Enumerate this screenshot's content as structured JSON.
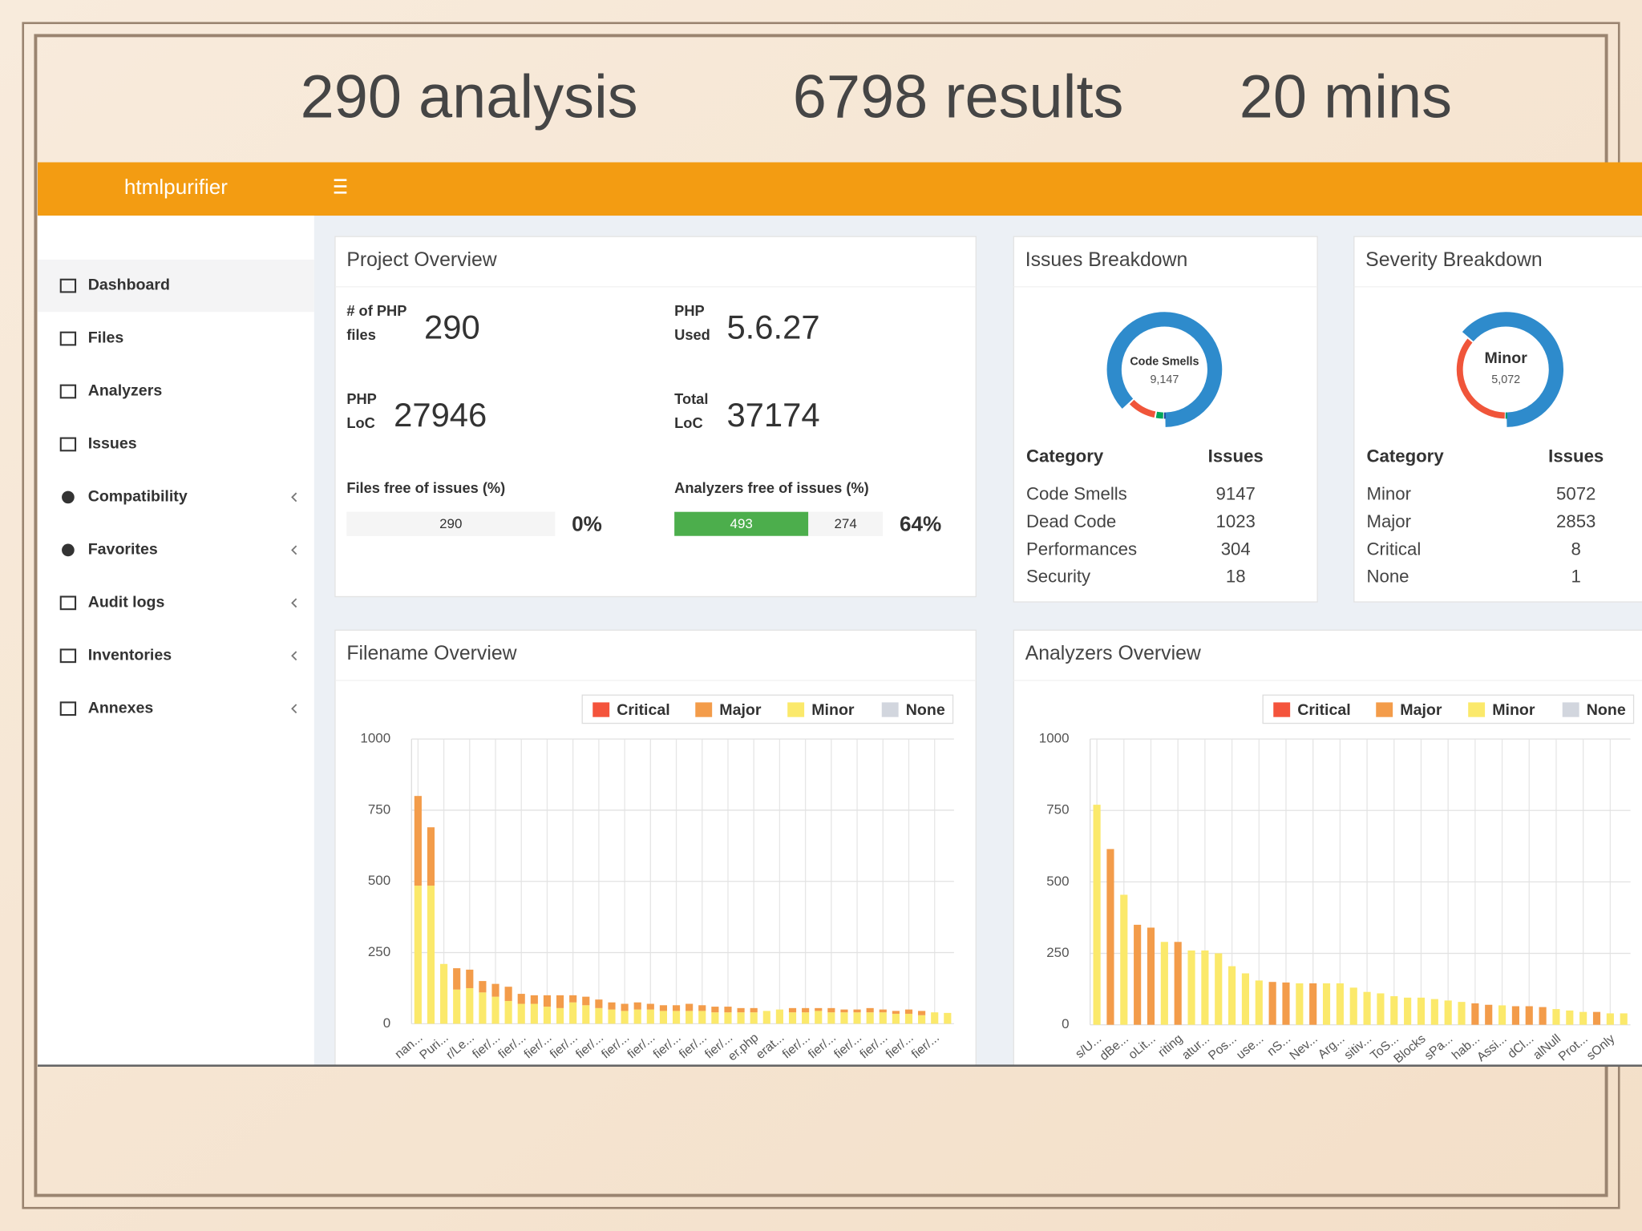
{
  "slide": {
    "stats": [
      "290 analysis",
      "6798 results",
      "20 mins"
    ]
  },
  "navbar": {
    "brand": "htmlpurifier"
  },
  "sidebar": {
    "items": [
      "Dashboard",
      "Files",
      "Analyzers",
      "Issues",
      "Compatibility",
      "Favorites",
      "Audit logs",
      "Inventories",
      "Annexes"
    ]
  },
  "project_overview": {
    "title": "Project Overview",
    "stats": [
      {
        "label": [
          "# of PHP",
          "files"
        ],
        "value": 290
      },
      {
        "label": [
          "PHP",
          "Used"
        ],
        "value": "5.6.27"
      },
      {
        "label": [
          "PHP",
          "LoC"
        ],
        "value": 27946
      },
      {
        "label": [
          "Total",
          "LoC"
        ],
        "value": 37174
      }
    ],
    "progress": [
      {
        "label": "Files free of issues (%)",
        "segments": [
          {
            "value": 290,
            "color": "#f5f5f5"
          }
        ],
        "percent": "0%"
      },
      {
        "label": "Analyzers free of issues (%)",
        "segments": [
          {
            "value": 493,
            "color": "#4cae4c"
          },
          {
            "value": 274,
            "color": "#f5f5f5"
          }
        ],
        "percent": "64%"
      }
    ]
  },
  "issues_breakdown": {
    "title": "Issues Breakdown",
    "headers": [
      "Category",
      "Issues"
    ],
    "rows": [
      [
        "Code Smells",
        9147
      ],
      [
        "Dead Code",
        1023
      ],
      [
        "Performances",
        304
      ],
      [
        "Security",
        18
      ]
    ],
    "colors": [
      "#2e8bcc",
      "#f0553a",
      "#00a65a",
      "#1f4fa0"
    ],
    "center_label": "Code Smells",
    "center_value": "9,147"
  },
  "severity_breakdown": {
    "title": "Severity Breakdown",
    "headers": [
      "Category",
      "Issues"
    ],
    "rows": [
      [
        "Minor",
        5072
      ],
      [
        "Major",
        2853
      ],
      [
        "Critical",
        8
      ],
      [
        "None",
        1
      ]
    ],
    "colors": [
      "#2e8bcc",
      "#f0553a",
      "#1f4fa0",
      "#00a65a"
    ],
    "center_label": "Minor",
    "center_value": "5,072"
  },
  "filename_overview": {
    "type": "bar",
    "stacked": true,
    "title": "Filename Overview",
    "categories": [
      "nan...",
      null,
      "Puri...",
      null,
      "r/Le...",
      null,
      "fier/...",
      null,
      "fier/...",
      null,
      "fier/...",
      null,
      "fier/...",
      null,
      "fier/...",
      null,
      "fier/...",
      null,
      "fier/...",
      null,
      "fier/...",
      null,
      "fier/...",
      null,
      "fier/...",
      null,
      "er.php",
      null,
      "erat...",
      null,
      "fier/...",
      null,
      "fier/...",
      null,
      "fier/...",
      null,
      "fier/...",
      null,
      "fier/...",
      null,
      "fier/...",
      null
    ],
    "series": [
      {
        "name": "Critical",
        "color": "#f4543c",
        "values": [
          0,
          0,
          0,
          0,
          0,
          0,
          0,
          0,
          0,
          0,
          0,
          0,
          0,
          0,
          0,
          0,
          0,
          0,
          0,
          0,
          0,
          0,
          0,
          0,
          0,
          0,
          0,
          0,
          0,
          0,
          0,
          0,
          0,
          0,
          0,
          0,
          0,
          0,
          0,
          0,
          0,
          0
        ]
      },
      {
        "name": "Major",
        "color": "#f39c4a",
        "values": [
          315,
          205,
          0,
          75,
          65,
          40,
          45,
          50,
          35,
          30,
          40,
          45,
          25,
          30,
          30,
          25,
          25,
          25,
          20,
          20,
          20,
          25,
          20,
          20,
          20,
          15,
          15,
          0,
          0,
          15,
          15,
          10,
          15,
          10,
          10,
          15,
          10,
          10,
          15,
          15,
          0,
          0
        ]
      },
      {
        "name": "Minor",
        "color": "#fbe96b",
        "values": [
          485,
          485,
          210,
          120,
          125,
          110,
          95,
          80,
          70,
          70,
          60,
          55,
          75,
          65,
          55,
          50,
          45,
          50,
          50,
          45,
          45,
          45,
          45,
          40,
          40,
          40,
          40,
          45,
          50,
          40,
          40,
          45,
          40,
          40,
          40,
          40,
          40,
          35,
          35,
          30,
          40,
          38
        ]
      },
      {
        "name": "None",
        "color": "#d2d6de",
        "values": [
          0,
          0,
          0,
          0,
          0,
          0,
          0,
          0,
          0,
          0,
          0,
          0,
          0,
          0,
          0,
          0,
          0,
          0,
          0,
          0,
          0,
          0,
          0,
          0,
          0,
          0,
          0,
          0,
          0,
          0,
          0,
          0,
          0,
          0,
          0,
          0,
          0,
          0,
          0,
          0,
          0,
          0
        ]
      }
    ],
    "ylim": [
      0,
      1000
    ],
    "yticks": [
      0,
      250,
      500,
      750,
      1000
    ],
    "grid": true
  },
  "analyzers_overview": {
    "type": "bar",
    "stacked": true,
    "title": "Analyzers Overview",
    "categories": [
      "s/U...",
      null,
      "dBe...",
      null,
      "oLit...",
      null,
      "riting",
      null,
      "atur...",
      null,
      "Pos...",
      null,
      "use...",
      null,
      "nS...",
      null,
      "Nev...",
      null,
      "Arg...",
      null,
      "sitiv...",
      null,
      "ToS...",
      null,
      "Blocks",
      null,
      "sPa...",
      null,
      "hab...",
      null,
      "Assi...",
      null,
      "dCl...",
      null,
      "alNull",
      null,
      "Prot...",
      null,
      "sOnly",
      null
    ],
    "series": [
      {
        "name": "Critical",
        "color": "#f4543c",
        "values": [
          0,
          0,
          0,
          0,
          0,
          0,
          0,
          0,
          0,
          0,
          0,
          0,
          0,
          0,
          0,
          0,
          0,
          0,
          0,
          0,
          0,
          0,
          0,
          0,
          0,
          0,
          0,
          0,
          0,
          0,
          0,
          0,
          0,
          0,
          0,
          0,
          0,
          0,
          0,
          0
        ]
      },
      {
        "name": "Major",
        "color": "#f39c4a",
        "values": [
          0,
          615,
          0,
          350,
          340,
          0,
          290,
          0,
          0,
          0,
          0,
          0,
          0,
          150,
          148,
          0,
          145,
          0,
          0,
          0,
          0,
          0,
          0,
          0,
          0,
          0,
          0,
          0,
          75,
          70,
          0,
          65,
          65,
          62,
          0,
          0,
          0,
          45,
          0,
          0
        ]
      },
      {
        "name": "Minor",
        "color": "#fbe96b",
        "values": [
          770,
          0,
          455,
          0,
          0,
          290,
          0,
          260,
          260,
          250,
          205,
          180,
          155,
          0,
          0,
          145,
          0,
          145,
          145,
          130,
          115,
          110,
          100,
          95,
          95,
          90,
          85,
          80,
          0,
          0,
          68,
          0,
          0,
          0,
          55,
          50,
          45,
          0,
          40,
          40
        ]
      },
      {
        "name": "None",
        "color": "#d2d6de",
        "values": [
          0,
          0,
          0,
          0,
          0,
          0,
          0,
          0,
          0,
          0,
          0,
          0,
          0,
          0,
          0,
          0,
          0,
          0,
          0,
          0,
          0,
          0,
          0,
          0,
          0,
          0,
          0,
          0,
          0,
          0,
          0,
          0,
          0,
          0,
          0,
          0,
          0,
          0,
          0,
          0
        ]
      }
    ],
    "ylim": [
      0,
      1000
    ],
    "yticks": [
      0,
      250,
      500,
      750,
      1000
    ],
    "grid": true
  }
}
